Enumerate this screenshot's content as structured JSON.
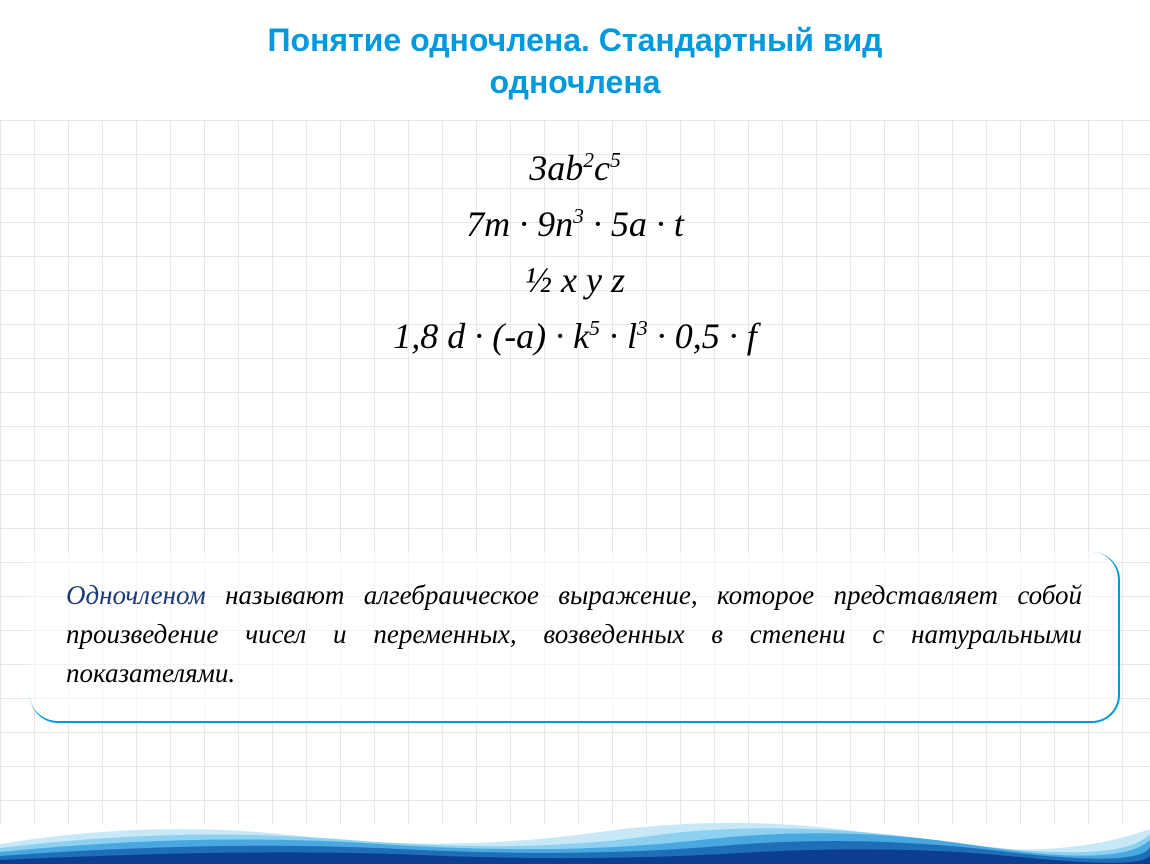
{
  "title": {
    "line1": "Понятие одночлена. Стандартный вид",
    "line2": "одночлена",
    "color": "#0099dd",
    "font_size": 32
  },
  "grid": {
    "cell_size": 34,
    "line_color": "#e8e8e8",
    "background_color": "#ffffff"
  },
  "formulas": {
    "lines": [
      {
        "text": "3ab²c⁵",
        "parts": [
          {
            "t": "3ab"
          },
          {
            "sup": "2"
          },
          {
            "t": "c"
          },
          {
            "sup": "5"
          }
        ]
      },
      {
        "text": "7m · 9n³ · 5a · t",
        "parts": [
          {
            "t": "7m · 9n"
          },
          {
            "sup": "3"
          },
          {
            "t": " · 5a · t"
          }
        ]
      },
      {
        "text": "½ x y z",
        "parts": [
          {
            "t": "½ x y z"
          }
        ]
      },
      {
        "text": "1,8 d · (-a) · k⁵ · l³ · 0,5 · f",
        "parts": [
          {
            "t": "1,8 d · (-a) · k"
          },
          {
            "sup": "5"
          },
          {
            "t": " · l"
          },
          {
            "sup": "3"
          },
          {
            "t": " · 0,5 · f"
          }
        ]
      }
    ],
    "font_size": 36,
    "font_style": "italic",
    "color": "#000000"
  },
  "definition": {
    "highlight_word": "Одночленом",
    "highlight_color": "#1a3a7a",
    "text_rest": " называют алгебраическое выражение, которое представляет собой произведение чисел и переменных, возведенных в степени с натуральными показателями.",
    "font_size": 27,
    "border_color": "#0099dd",
    "border_radius": 28
  },
  "footer_wave": {
    "colors": [
      "#0b3d91",
      "#1e6fb8",
      "#4aa8e0",
      "#8dd0f0",
      "#c8e8f8"
    ],
    "height": 60
  }
}
